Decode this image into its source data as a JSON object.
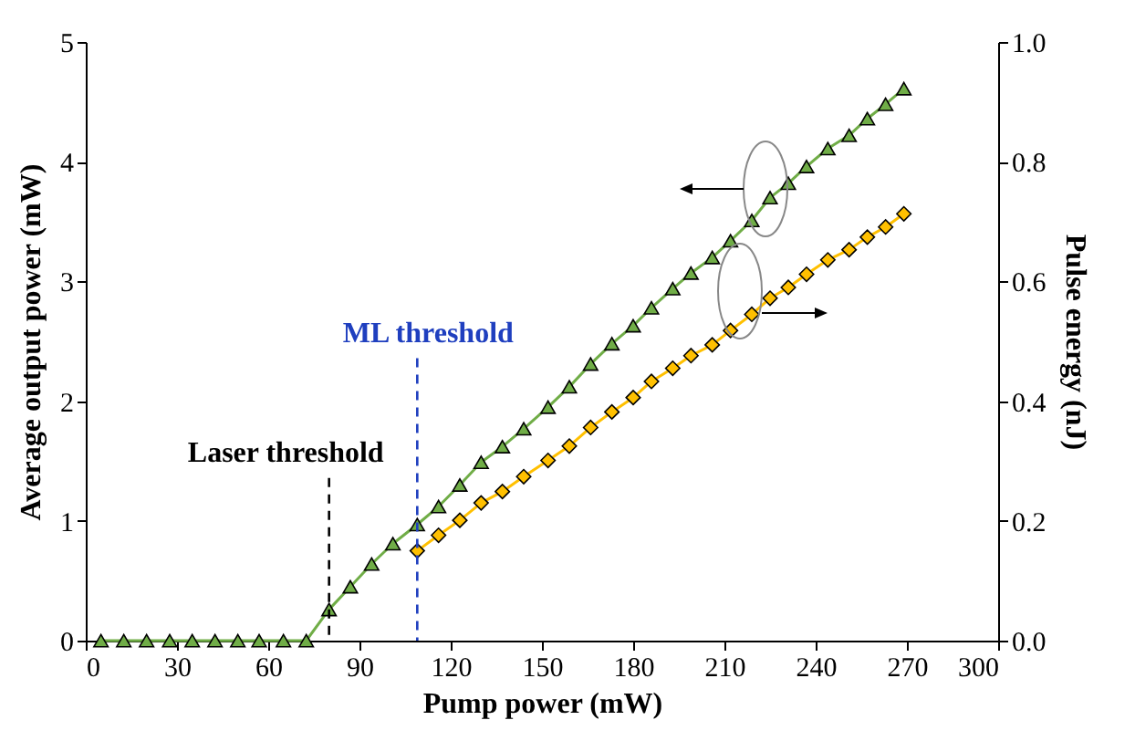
{
  "chart_data": {
    "type": "line",
    "xlabel": "Pump power (mW)",
    "ylabel": "Average output power (mW)",
    "y2label": "Pulse energy (nJ)",
    "x": [
      5,
      12.5,
      20,
      27.6,
      35,
      42.5,
      50,
      57,
      65,
      72.5,
      80,
      87,
      94,
      101,
      109,
      116,
      123,
      130,
      137,
      144,
      152,
      159,
      166,
      173,
      180,
      186,
      193,
      199,
      206,
      212,
      219,
      225,
      231,
      237,
      244,
      251,
      257,
      263,
      269
    ],
    "series": [
      {
        "color": "#70ad47",
        "marker": "triangle",
        "values": [
          0,
          0,
          0,
          0,
          0,
          0,
          0,
          0,
          0,
          0,
          0.26,
          0.45,
          0.64,
          0.81,
          0.97,
          1.12,
          1.3,
          1.49,
          1.62,
          1.77,
          1.95,
          2.12,
          2.31,
          2.48,
          2.63,
          2.78,
          2.94,
          3.07,
          3.2,
          3.34,
          3.51,
          3.7,
          3.82,
          3.96,
          4.11,
          4.22,
          4.36,
          4.48,
          4.61
        ]
      },
      {
        "color": "#ffc000",
        "marker": "diamond",
        "axis": "y2",
        "values": [
          null,
          null,
          null,
          null,
          null,
          null,
          null,
          null,
          null,
          null,
          null,
          null,
          null,
          null,
          0.15,
          0.176,
          0.201,
          0.23,
          0.249,
          0.274,
          0.301,
          0.325,
          0.356,
          0.382,
          0.406,
          0.433,
          0.455,
          0.476,
          0.494,
          0.518,
          0.545,
          0.572,
          0.59,
          0.612,
          0.636,
          0.653,
          0.674,
          0.691,
          0.713
        ]
      }
    ],
    "xlim": [
      0,
      300
    ],
    "xticks": [
      0,
      30,
      60,
      90,
      120,
      150,
      180,
      210,
      240,
      270,
      300
    ],
    "ylim": [
      0,
      5
    ],
    "yticks": [
      0,
      1,
      2,
      3,
      4,
      5
    ],
    "y2lim": [
      0,
      1
    ],
    "y2ticks": [
      {
        "value": 0,
        "label": "0.0"
      },
      {
        "value": 0.2,
        "label": "0.2"
      },
      {
        "value": 0.4,
        "label": "0.4"
      },
      {
        "value": 0.6,
        "label": "0.6"
      },
      {
        "value": 0.8,
        "label": "0.8"
      },
      {
        "value": 1,
        "label": "1.0"
      }
    ],
    "ref_lines": [
      {
        "axis": "x",
        "value": 80,
        "label": "Laser threshold",
        "color": "#000000",
        "line_style": "dashed"
      },
      {
        "axis": "x",
        "value": 109,
        "label": "ML threshold",
        "color": "#1f3fbf",
        "line_style": "dashed"
      }
    ],
    "grid": false,
    "legend": false
  }
}
